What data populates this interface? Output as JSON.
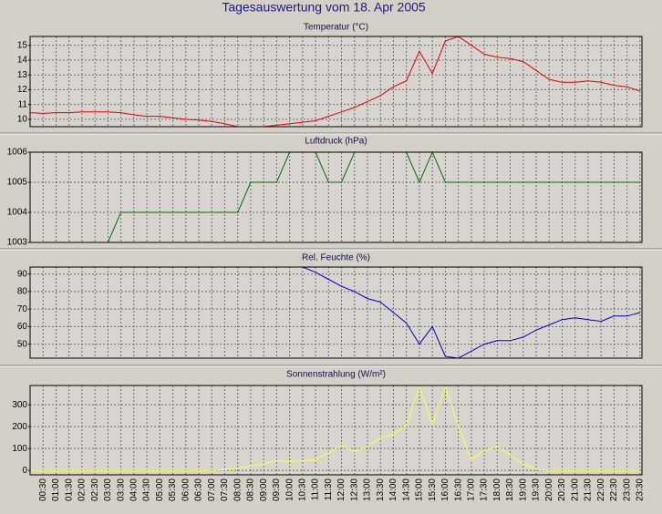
{
  "title": "Tagesauswertung vom 18. Apr 2005",
  "chart_data": [
    {
      "type": "line",
      "title": "Temperatur (°C)",
      "color": "#e00000",
      "ylim": [
        9.5,
        15.6
      ],
      "yticks": [
        10,
        11,
        12,
        13,
        14,
        15
      ],
      "grid": true,
      "values": [
        10.45,
        10.4,
        10.45,
        10.45,
        10.5,
        10.5,
        10.5,
        10.45,
        10.3,
        10.2,
        10.2,
        10.1,
        10.0,
        9.95,
        9.85,
        9.7,
        9.5,
        9.5,
        9.5,
        9.6,
        9.7,
        9.8,
        9.9,
        10.2,
        10.5,
        10.8,
        11.2,
        11.6,
        12.2,
        12.6,
        14.6,
        13.1,
        15.3,
        15.6,
        15.0,
        14.4,
        14.2,
        14.1,
        13.9,
        13.3,
        12.7,
        12.5,
        12.5,
        12.6,
        12.5,
        12.3,
        12.2,
        11.9
      ]
    },
    {
      "type": "line",
      "title": "Luftdruck (hPa)",
      "color": "#007000",
      "ylim": [
        1003,
        1006
      ],
      "yticks": [
        1003,
        1004,
        1005,
        1006
      ],
      "grid": true,
      "values": [
        1003,
        1003,
        1003,
        1003,
        1003,
        1003,
        1003,
        1004,
        1004,
        1004,
        1004,
        1004,
        1004,
        1004,
        1004,
        1004,
        1004,
        1005,
        1005,
        1005,
        1006,
        1006,
        1006,
        1005,
        1005,
        1006,
        1006,
        1006,
        1006,
        1006,
        1005,
        1006,
        1005,
        1005,
        1005,
        1005,
        1005,
        1005,
        1005,
        1005,
        1005,
        1005,
        1005,
        1005,
        1005,
        1005,
        1005,
        1005
      ]
    },
    {
      "type": "line",
      "title": "Rel. Feuchte (%)",
      "color": "#0000c0",
      "ylim": [
        42,
        94
      ],
      "yticks": [
        50,
        60,
        70,
        80,
        90
      ],
      "grid": true,
      "values": [
        null,
        null,
        null,
        null,
        null,
        null,
        null,
        null,
        null,
        null,
        null,
        null,
        null,
        null,
        null,
        null,
        null,
        null,
        null,
        null,
        null,
        94,
        91,
        87,
        83,
        80,
        76,
        74,
        68,
        62,
        50,
        60,
        43,
        42,
        46,
        50,
        52,
        52,
        54,
        58,
        61,
        64,
        65,
        64,
        63,
        66,
        66,
        68
      ]
    },
    {
      "type": "line",
      "title": "Sonnenstrahlung (W/m²)",
      "color": "#ffff40",
      "ylim": [
        -20,
        388
      ],
      "yticks": [
        0,
        100,
        200,
        300
      ],
      "grid": true,
      "categories": [
        null,
        "00:30",
        "01:00",
        "01:30",
        "02:00",
        "02:30",
        "03:00",
        "03:30",
        "04:00",
        "04:30",
        "05:00",
        "05:30",
        "06:00",
        "06:30",
        "07:00",
        "07:30",
        "08:00",
        "08:30",
        "09:00",
        "09:30",
        "10:00",
        "10:30",
        "11:00",
        "11:30",
        "12:00",
        "12:30",
        "13:00",
        "13:30",
        "14:00",
        "14:30",
        "15:00",
        "15:30",
        "16:00",
        "16:30",
        "17:00",
        "17:30",
        "18:00",
        "18:30",
        "19:00",
        "19:30",
        "20:00",
        "20:30",
        "21:00",
        "21:30",
        "22:00",
        "22:30",
        "23:00",
        "23:30"
      ],
      "values": [
        0,
        0,
        0,
        0,
        0,
        0,
        0,
        0,
        0,
        0,
        0,
        0,
        0,
        0,
        0,
        3,
        10,
        20,
        30,
        45,
        40,
        45,
        50,
        80,
        115,
        85,
        110,
        150,
        165,
        205,
        380,
        210,
        380,
        200,
        50,
        90,
        110,
        70,
        30,
        5,
        0,
        0,
        0,
        0,
        0,
        0,
        0,
        0
      ]
    }
  ]
}
